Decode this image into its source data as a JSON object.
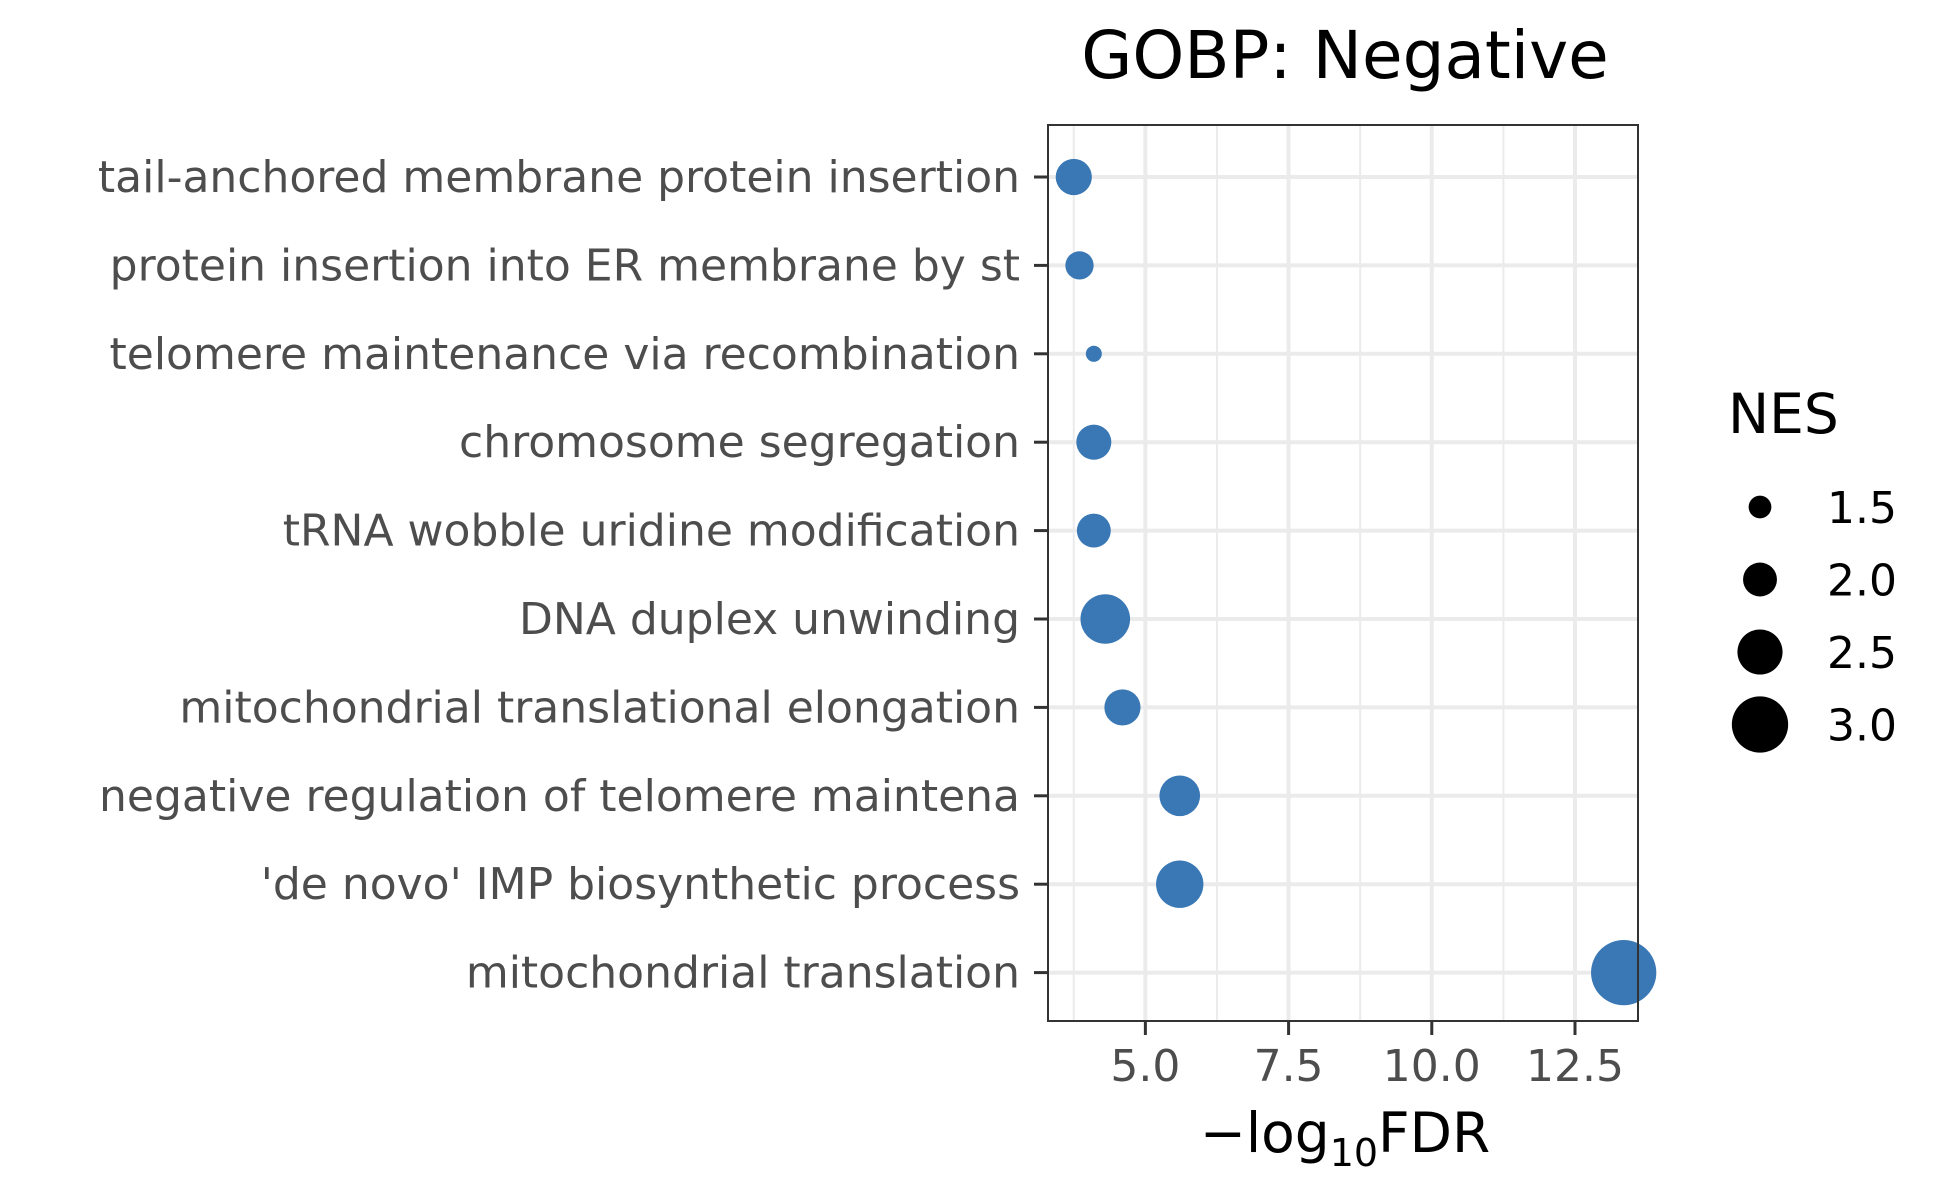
{
  "chart_data": {
    "type": "scatter",
    "title": "GOBP: Negative",
    "xlabel": {
      "prefix": "−log",
      "subscript": "10",
      "suffix": "FDR"
    },
    "ylabel": "",
    "xlim": [
      3.3,
      13.6
    ],
    "x_ticks": [
      5.0,
      7.5,
      10.0,
      12.5
    ],
    "x_tick_labels": [
      "5.0",
      "7.5",
      "10.0",
      "12.5"
    ],
    "grid": true,
    "point_color": "#3a78b5",
    "categories": [
      "tail-anchored membrane protein insertion",
      "protein insertion into ER membrane by st",
      "telomere maintenance via recombination",
      "chromosome segregation",
      "tRNA wobble uridine modification",
      "DNA duplex unwinding",
      "mitochondrial translational elongation",
      "negative regulation of telomere maintena",
      "'de novo' IMP biosynthetic process",
      "mitochondrial translation"
    ],
    "points": [
      {
        "category": "tail-anchored membrane protein insertion",
        "x": 3.75,
        "nes": 2.1
      },
      {
        "category": "protein insertion into ER membrane by st",
        "x": 3.85,
        "nes": 1.75
      },
      {
        "category": "telomere maintenance via recombination",
        "x": 4.1,
        "nes": 1.2
      },
      {
        "category": "chromosome segregation",
        "x": 4.1,
        "nes": 2.05
      },
      {
        "category": "tRNA wobble uridine modification",
        "x": 4.1,
        "nes": 2.0
      },
      {
        "category": "DNA duplex unwinding",
        "x": 4.3,
        "nes": 2.7
      },
      {
        "category": "mitochondrial translational elongation",
        "x": 4.6,
        "nes": 2.1
      },
      {
        "category": "negative regulation of telomere maintena",
        "x": 5.6,
        "nes": 2.3
      },
      {
        "category": "'de novo' IMP biosynthetic process",
        "x": 5.6,
        "nes": 2.6
      },
      {
        "category": "mitochondrial translation",
        "x": 13.35,
        "nes": 3.4
      }
    ],
    "legend": {
      "title": "NES",
      "position": "right",
      "entries": [
        {
          "label": "1.5",
          "nes": 1.5
        },
        {
          "label": "2.0",
          "nes": 2.0
        },
        {
          "label": "2.5",
          "nes": 2.5
        },
        {
          "label": "3.0",
          "nes": 3.0
        }
      ]
    }
  }
}
